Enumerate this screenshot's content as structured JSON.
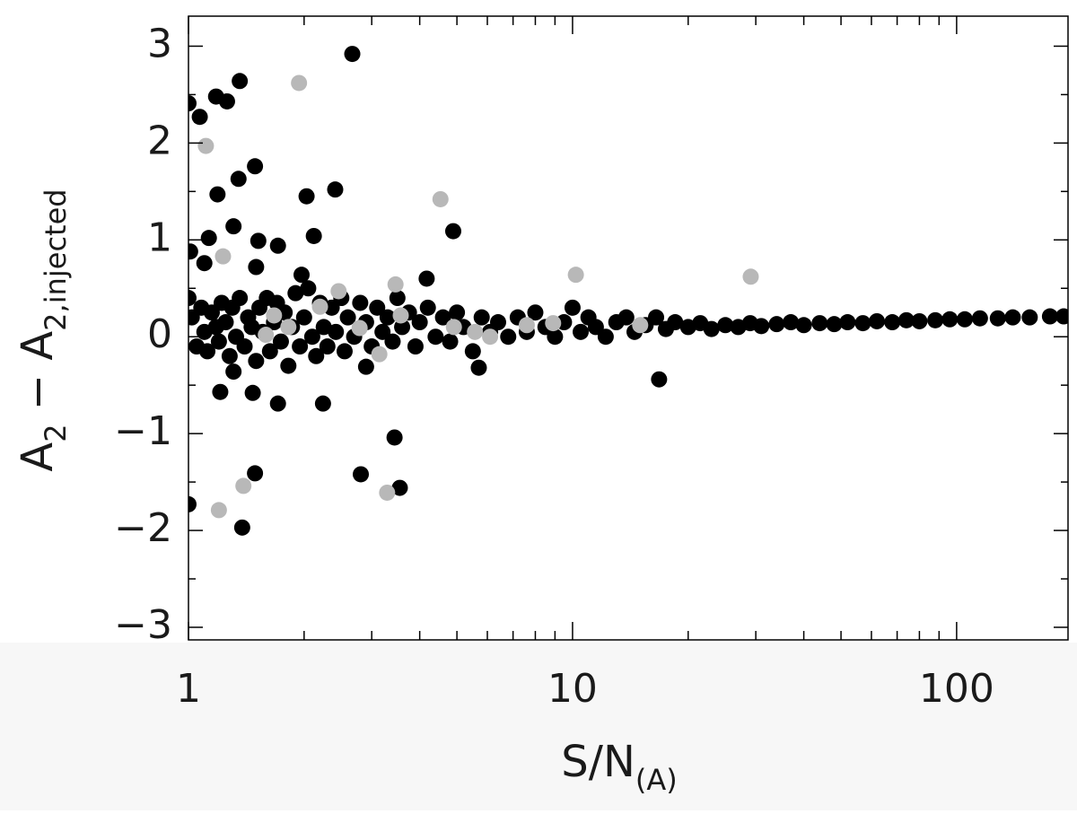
{
  "chart_data": {
    "type": "scatter",
    "xlabel": [
      {
        "text": "S/N"
      },
      {
        "text": "(A)",
        "sub": true
      }
    ],
    "ylabel": [
      {
        "text": "A"
      },
      {
        "text": "2",
        "sub": true
      },
      {
        "text": " − "
      },
      {
        "text": "A"
      },
      {
        "text": "2,injected",
        "sub": true
      }
    ],
    "xlog": true,
    "xlim": [
      1,
      195
    ],
    "xticks": [
      1,
      10,
      100
    ],
    "xminor": [
      2,
      3,
      4,
      5,
      6,
      7,
      8,
      9,
      20,
      30,
      40,
      50,
      60,
      70,
      80,
      90
    ],
    "ylim": [
      -3.13,
      3.31
    ],
    "yticks": [
      {
        "value": -3,
        "label": "−3"
      },
      {
        "value": -2,
        "label": "−2"
      },
      {
        "value": -1,
        "label": "−1"
      },
      0,
      1,
      2,
      3
    ],
    "yminor": [
      -2.5,
      -1.5,
      -0.5,
      0.5,
      1.5,
      2.5
    ],
    "series": [
      {
        "color": "#000000",
        "x": [
          1.0,
          1.07,
          1.18,
          1.26,
          1.36,
          2.67,
          1.49,
          1.35,
          1.19,
          2.03,
          2.41,
          1.31,
          1.13,
          1.52,
          1.71,
          2.12,
          4.89,
          1.01,
          1.1,
          1.5,
          1.97,
          4.17,
          1.0,
          1.38,
          1.49,
          2.81,
          3.44,
          3.55,
          1.71,
          2.24,
          2.9,
          5.7,
          16.8,
          1.21,
          1.47,
          1.31,
          1.0,
          1.02,
          1.05,
          1.08,
          1.1,
          1.12,
          1.15,
          1.18,
          1.2,
          1.22,
          1.25,
          1.28,
          1.3,
          1.33,
          1.36,
          1.4,
          1.43,
          1.46,
          1.5,
          1.53,
          1.56,
          1.6,
          1.63,
          1.67,
          1.7,
          1.74,
          1.78,
          1.82,
          1.86,
          1.9,
          1.95,
          2.0,
          2.05,
          2.1,
          2.15,
          2.2,
          2.25,
          2.3,
          2.36,
          2.42,
          2.5,
          2.55,
          2.6,
          2.7,
          2.8,
          2.9,
          3.0,
          3.1,
          3.2,
          3.3,
          3.4,
          3.5,
          3.6,
          3.75,
          3.9,
          4.0,
          4.2,
          4.4,
          4.6,
          4.8,
          5.0,
          5.2,
          5.5,
          5.8,
          6.1,
          6.4,
          6.8,
          7.2,
          7.6,
          8.0,
          8.5,
          9.0,
          9.5,
          10.0,
          10.5,
          11.0,
          11.5,
          12.2,
          13.0,
          13.8,
          14.5,
          15.5,
          16.5,
          17.5,
          18.5,
          20,
          21.5,
          23,
          25,
          27,
          29,
          31,
          34,
          37,
          40,
          44,
          48,
          52,
          57,
          62,
          68,
          74,
          80,
          88,
          96,
          105,
          115,
          128,
          140,
          155,
          175,
          190
        ],
        "y": [
          2.41,
          2.27,
          2.48,
          2.43,
          2.64,
          2.92,
          1.76,
          1.63,
          1.47,
          1.45,
          1.52,
          1.14,
          1.02,
          0.99,
          0.94,
          1.04,
          1.09,
          0.88,
          0.76,
          0.72,
          0.64,
          0.6,
          -1.73,
          -1.97,
          -1.41,
          -1.42,
          -1.04,
          -1.56,
          -0.69,
          -0.69,
          -0.31,
          -0.32,
          -0.44,
          -0.57,
          -0.58,
          -0.36,
          0.4,
          0.2,
          -0.1,
          0.3,
          0.05,
          -0.15,
          0.25,
          0.1,
          -0.05,
          0.35,
          0.15,
          -0.2,
          0.3,
          0.0,
          0.4,
          -0.1,
          0.2,
          0.1,
          -0.25,
          0.3,
          0.05,
          0.4,
          -0.15,
          0.15,
          0.35,
          -0.05,
          0.25,
          -0.3,
          0.1,
          0.45,
          -0.1,
          0.2,
          0.5,
          0.0,
          -0.2,
          0.35,
          0.1,
          -0.1,
          0.3,
          0.05,
          0.4,
          -0.15,
          0.2,
          0.0,
          0.35,
          0.15,
          -0.1,
          0.3,
          0.05,
          0.2,
          -0.05,
          0.4,
          0.1,
          0.25,
          -0.1,
          0.15,
          0.3,
          0.0,
          0.2,
          -0.05,
          0.25,
          0.1,
          -0.15,
          0.2,
          0.05,
          0.15,
          0.0,
          0.2,
          0.05,
          0.25,
          0.1,
          0.0,
          0.15,
          0.3,
          0.05,
          0.2,
          0.1,
          0.0,
          0.15,
          0.2,
          0.05,
          0.12,
          0.2,
          0.08,
          0.15,
          0.1,
          0.14,
          0.08,
          0.12,
          0.1,
          0.14,
          0.11,
          0.13,
          0.15,
          0.12,
          0.14,
          0.13,
          0.15,
          0.14,
          0.16,
          0.15,
          0.17,
          0.16,
          0.17,
          0.18,
          0.18,
          0.19,
          0.19,
          0.2,
          0.2,
          0.21,
          0.21
        ]
      },
      {
        "color": "#b8b8b8",
        "x": [
          1.94,
          1.11,
          1.23,
          4.53,
          10.2,
          29.1,
          2.46,
          3.46,
          2.2,
          1.67,
          1.82,
          1.59,
          2.79,
          3.57,
          4.91,
          5.57,
          6.1,
          7.6,
          8.9,
          15.0,
          3.14,
          3.29,
          1.39,
          1.2
        ],
        "y": [
          2.62,
          1.97,
          0.83,
          1.42,
          0.64,
          0.62,
          0.47,
          0.54,
          0.31,
          0.22,
          0.1,
          0.02,
          0.09,
          0.22,
          0.1,
          0.05,
          0.0,
          0.12,
          0.14,
          0.12,
          -0.18,
          -1.61,
          -1.54,
          -1.79
        ]
      }
    ]
  }
}
